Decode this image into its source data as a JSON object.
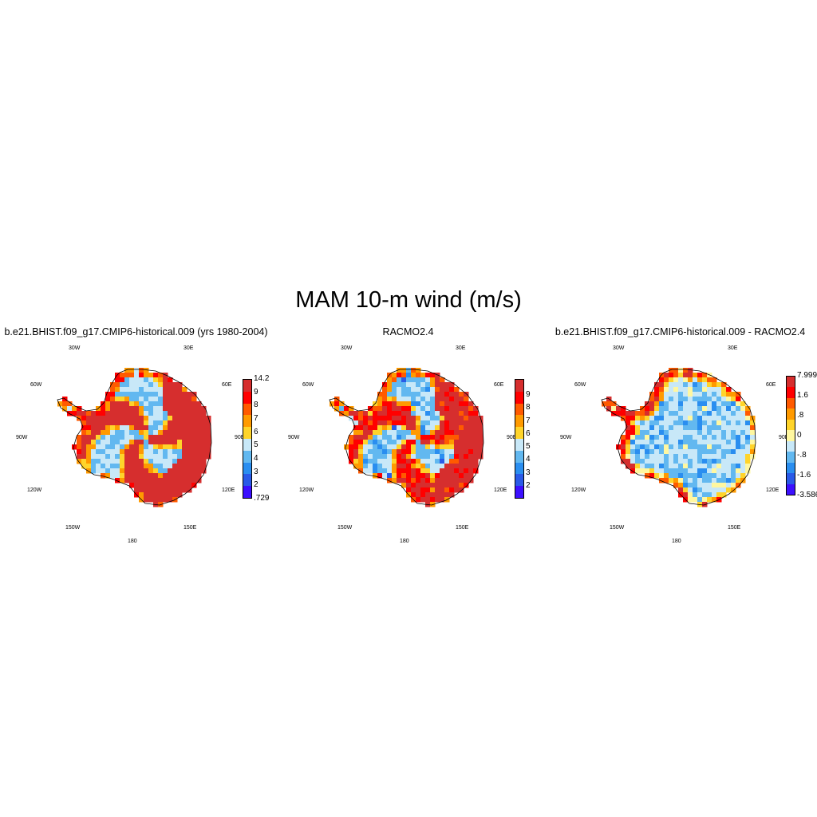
{
  "title": "MAM 10-m wind (m/s)",
  "panels": [
    {
      "title": "b.e21.BHIST.f09_g17.CMIP6-historical.009 (yrs 1980-2004)",
      "colorbar": {
        "labels": [
          "14.2",
          "9",
          "8",
          "7",
          "6",
          "5",
          "4",
          "3",
          "2",
          ".729"
        ],
        "colors": [
          "#d62e2e",
          "#ff0000",
          "#ff5a00",
          "#ff9a00",
          "#ffd42a",
          "#c8e8f8",
          "#62b8f0",
          "#2a8ef0",
          "#2a5ae8",
          "#3c10ff"
        ]
      },
      "field": "model_wind"
    },
    {
      "title": "RACMO2.4",
      "colorbar": {
        "labels": [
          "9",
          "8",
          "7",
          "6",
          "5",
          "4",
          "3",
          "2"
        ],
        "colors": [
          "#d62e2e",
          "#ff0000",
          "#ff5a00",
          "#ff9a00",
          "#ffd42a",
          "#c8e8f8",
          "#62b8f0",
          "#2a8ef0",
          "#2a5ae8",
          "#3c10ff"
        ]
      },
      "field": "racmo_wind"
    },
    {
      "title": "b.e21.BHIST.f09_g17.CMIP6-historical.009 - RACMO2.4",
      "colorbar": {
        "labels": [
          "7.999",
          "1.6",
          ".8",
          "0",
          "-.8",
          "-1.6",
          "-3.586"
        ],
        "colors": [
          "#d62e2e",
          "#ff0000",
          "#ff5a00",
          "#ff9a00",
          "#ffd42a",
          "#fff7a0",
          "#c8e8f8",
          "#62b8f0",
          "#2a8ef0",
          "#2a5ae8",
          "#3c10ff"
        ]
      },
      "field": "difference"
    }
  ],
  "longitude_labels": [
    "30W",
    "30E",
    "60W",
    "60E",
    "90W",
    "90E",
    "120W",
    "120E",
    "150W",
    "150E",
    "180"
  ]
}
